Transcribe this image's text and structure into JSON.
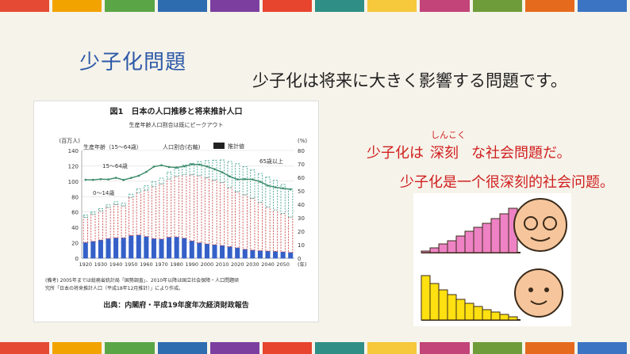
{
  "slide": {
    "title": "少子化問題",
    "subtitle": "少子化は将来に大きく影響する問題です。",
    "sentence_jp": {
      "part1": "少子化は",
      "keyword": "深刻",
      "ruby": "しんこく",
      "part2": "な社会問題だ。"
    },
    "sentence_cn": "少子化是一个很深刻的社会问题。"
  },
  "figure": {
    "caption": "図1　日本の人口推移と将来推計人口",
    "subcaption": "生産年齢人口割合は既にピークアウト",
    "left_unit": "(百万人)",
    "right_unit": "(%)",
    "right_axis_label": "(年)",
    "legend_working": "生産年齢（15～64歳）",
    "legend_ratio": "人口割合(右軸)",
    "legend_projection": "推計値",
    "label_15_64": "15～64歳",
    "label_0_14": "0～14歳",
    "label_65": "65歳以上",
    "note_line1": "(備考) 2005年までは総務省統計局「国勢調査」、2010年以降は国立社会保障・人口問題研",
    "note_line2": "究所「日本の将来推計人口（平成18年12月推計）」により作成。",
    "source": "出典：内閣府・平成19年度年次経済財政報告",
    "left_ticks": [
      "140",
      "120",
      "100",
      "80",
      "60",
      "40",
      "20",
      "0"
    ],
    "right_ticks": [
      "80",
      "70",
      "60",
      "50",
      "40",
      "30",
      "20",
      "10",
      "0"
    ],
    "year_ticks": [
      "1920",
      "1930",
      "1940",
      "1950",
      "1960",
      "1970",
      "1980",
      "1990",
      "2000",
      "2010",
      "2020",
      "2030",
      "2040",
      "2050"
    ]
  },
  "chart_data": {
    "type": "bar",
    "title": "図1　日本の人口推移と将来推計人口",
    "x": [
      1920,
      1925,
      1930,
      1935,
      1940,
      1945,
      1950,
      1955,
      1960,
      1965,
      1970,
      1975,
      1980,
      1985,
      1990,
      1995,
      2000,
      2005,
      2010,
      2015,
      2020,
      2025,
      2030,
      2035,
      2040,
      2045,
      2050,
      2055
    ],
    "series": [
      {
        "name": "0～14歳",
        "values": [
          20.4,
          21.9,
          23.6,
          25.5,
          26.4,
          26.5,
          29.4,
          30.1,
          28.1,
          25.5,
          24.8,
          27.2,
          27.5,
          26.0,
          22.5,
          20.0,
          18.5,
          17.5,
          16.5,
          15.0,
          13.5,
          11.6,
          10.5,
          9.8,
          9.3,
          8.8,
          8.2,
          7.5
        ]
      },
      {
        "name": "15～64歳",
        "values": [
          32.6,
          35.0,
          37.8,
          40.5,
          43.3,
          41.5,
          49.7,
          55.2,
          60.5,
          67.4,
          71.9,
          75.8,
          78.8,
          82.5,
          85.9,
          87.2,
          86.2,
          84.1,
          81.7,
          76.8,
          73.0,
          70.8,
          67.4,
          62.9,
          57.3,
          53.9,
          50.0,
          46.0
        ]
      },
      {
        "name": "65歳以上",
        "values": [
          2.9,
          3.0,
          3.1,
          3.2,
          3.5,
          3.7,
          4.1,
          4.8,
          5.4,
          6.2,
          7.3,
          8.9,
          10.6,
          12.5,
          14.9,
          18.3,
          22.0,
          25.7,
          29.4,
          33.8,
          36.2,
          36.6,
          36.7,
          37.3,
          38.7,
          38.4,
          37.6,
          36.5
        ]
      },
      {
        "name": "生産年齢人口割合(右軸)",
        "values": [
          58.3,
          58.2,
          58.7,
          58.5,
          59.7,
          58.1,
          59.6,
          61.2,
          64.1,
          68.0,
          69.0,
          67.7,
          67.4,
          68.2,
          69.7,
          69.5,
          68.1,
          66.1,
          63.8,
          60.7,
          58.5,
          58.7,
          58.5,
          56.8,
          53.9,
          52.7,
          51.9,
          51.1
        ]
      }
    ],
    "ylim": [
      0,
      140
    ],
    "y2lim": [
      0,
      80
    ],
    "ylabel": "(百万人)",
    "y2label": "(%)"
  },
  "illustration": {
    "elder_bars": [
      2,
      6,
      11,
      15,
      21,
      27,
      32,
      37,
      43,
      49,
      56
    ],
    "young_bars": [
      56,
      46,
      38,
      32,
      26,
      21,
      17,
      13,
      10,
      7,
      4
    ],
    "colors": {
      "elder": "#ee82c4",
      "young": "#ffe010",
      "outline": "#3a2a1a"
    }
  },
  "stripe_colors": [
    "#e54b34",
    "#f2a300",
    "#5aa646",
    "#2e6cb0",
    "#7c3fa0",
    "#e7452e",
    "#2f8f86",
    "#f6c83c",
    "#c24478",
    "#6f9c3a",
    "#e56a1e",
    "#3b74c2"
  ]
}
